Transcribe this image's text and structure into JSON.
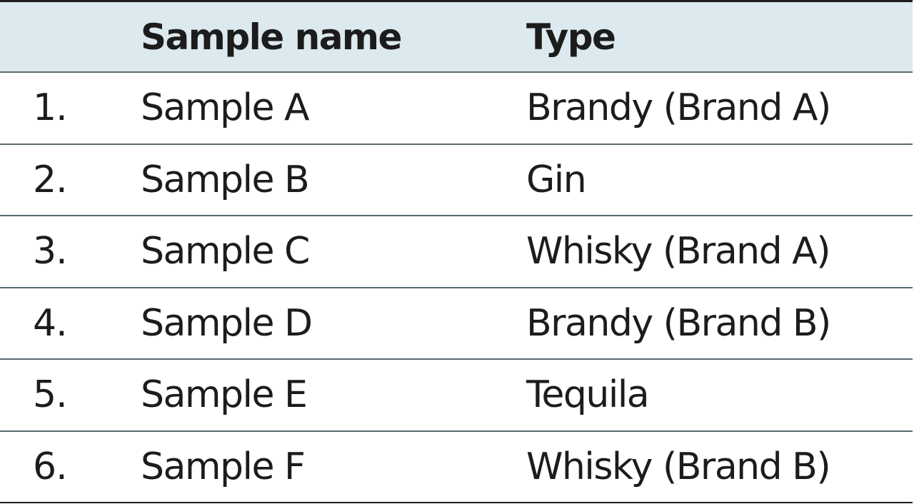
{
  "table": {
    "headers": {
      "number": "",
      "sample_name": "Sample name",
      "type": "Type"
    },
    "rows": [
      {
        "number": "1.",
        "sample_name": "Sample A",
        "type": "Brandy (Brand A)"
      },
      {
        "number": "2.",
        "sample_name": "Sample B",
        "type": "Gin"
      },
      {
        "number": "3.",
        "sample_name": "Sample C",
        "type": "Whisky (Brand A)"
      },
      {
        "number": "4.",
        "sample_name": "Sample D",
        "type": "Brandy (Brand B)"
      },
      {
        "number": "5.",
        "sample_name": "Sample E",
        "type": "Tequila"
      },
      {
        "number": "6.",
        "sample_name": "Sample F",
        "type": "Whisky (Brand B)"
      }
    ]
  },
  "colors": {
    "header_background": "#dce9ee",
    "text": "#1c1c1c",
    "rule": "#5a6a70"
  }
}
